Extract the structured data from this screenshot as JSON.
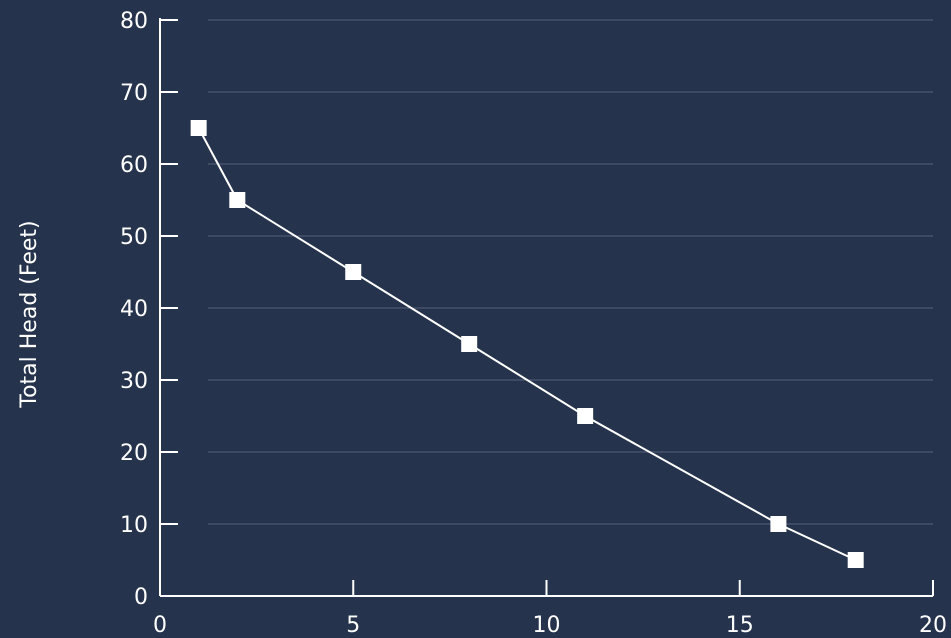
{
  "chart_data": {
    "type": "line",
    "title": "",
    "xlabel": "",
    "ylabel": "Total Head (Feet)",
    "xlim": [
      0,
      20
    ],
    "ylim": [
      0,
      80
    ],
    "x_ticks": [
      0,
      5,
      10,
      15,
      20
    ],
    "y_ticks": [
      0,
      10,
      20,
      30,
      40,
      50,
      60,
      70,
      80
    ],
    "grid": "horizontal",
    "marker": "square",
    "colors": {
      "background": "#26334c",
      "series": "#ffffff",
      "grid": "#55617a",
      "text": "#ffffff"
    },
    "series": [
      {
        "x": [
          1,
          2,
          5,
          8,
          11,
          16,
          18
        ],
        "values": [
          65,
          55,
          45,
          35,
          25,
          10,
          5
        ]
      }
    ]
  }
}
